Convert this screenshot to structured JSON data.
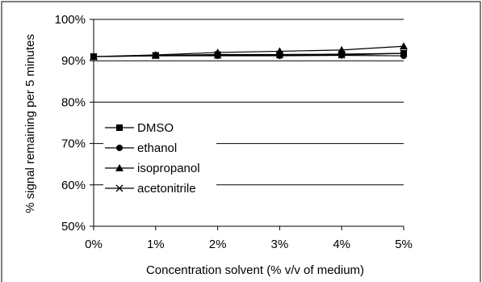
{
  "chart_data": {
    "type": "line",
    "title": "",
    "xlabel": "Concentration solvent (% v/v of medium)",
    "ylabel": "% signal remaining per 5 minutes",
    "categories": [
      "0%",
      "1%",
      "2%",
      "3%",
      "4%",
      "5%"
    ],
    "x": [
      0,
      1,
      2,
      3,
      4,
      5
    ],
    "ylim": [
      50,
      100
    ],
    "yticks": [
      50,
      60,
      70,
      80,
      90,
      100
    ],
    "ytick_labels": [
      "50%",
      "60%",
      "70%",
      "80%",
      "90%",
      "100%"
    ],
    "grid": "horizontal",
    "legend_position": "left",
    "series": [
      {
        "name": "DMSO",
        "marker": "square",
        "values": [
          91.0,
          91.3,
          91.5,
          91.5,
          91.6,
          91.8
        ]
      },
      {
        "name": "ethanol",
        "marker": "circle",
        "values": [
          91.0,
          91.2,
          91.2,
          91.2,
          91.3,
          91.2
        ]
      },
      {
        "name": "isopropanol",
        "marker": "triangle",
        "values": [
          91.0,
          91.4,
          92.0,
          92.3,
          92.6,
          93.5
        ]
      },
      {
        "name": "acetonitrile",
        "marker": "x",
        "values": [
          91.0,
          91.2,
          91.3,
          91.4,
          91.4,
          91.8
        ]
      }
    ]
  }
}
